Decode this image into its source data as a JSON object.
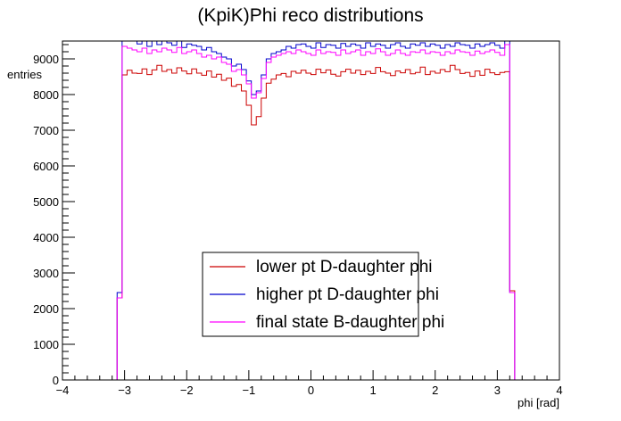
{
  "chart_data": {
    "type": "histogram",
    "title": "(KpiK)Phi reco distributions",
    "xlabel": "phi [rad]",
    "ylabel": "entries",
    "xlim": [
      -4,
      4
    ],
    "ylim": [
      0,
      9500
    ],
    "xticks": [
      -4,
      -3,
      -2,
      -1,
      0,
      1,
      2,
      3,
      4
    ],
    "yticks": [
      0,
      1000,
      2000,
      3000,
      4000,
      5000,
      6000,
      7000,
      8000,
      9000
    ],
    "x_tick_labels": [
      "−4",
      "−3",
      "−2",
      "−1",
      "0",
      "1",
      "2",
      "3",
      "4"
    ],
    "y_tick_labels": [
      "0",
      "1000",
      "2000",
      "3000",
      "4000",
      "5000",
      "6000",
      "7000",
      "8000",
      "9000"
    ],
    "grid": false,
    "legend_position": "bottom-center",
    "bins": {
      "xmin": -4,
      "xmax": 4,
      "nbins": 100
    },
    "series": [
      {
        "name": "lower pt D-daughter phi",
        "color": "#cc0000",
        "values": [
          0,
          0,
          0,
          0,
          0,
          0,
          0,
          0,
          0,
          0,
          0,
          2300,
          8550,
          8680,
          8600,
          8590,
          8720,
          8560,
          8690,
          8820,
          8650,
          8700,
          8600,
          8750,
          8660,
          8580,
          8720,
          8600,
          8540,
          8660,
          8490,
          8570,
          8400,
          8460,
          8230,
          8280,
          8100,
          7700,
          7150,
          7380,
          7900,
          8320,
          8430,
          8550,
          8590,
          8500,
          8650,
          8600,
          8680,
          8600,
          8560,
          8710,
          8610,
          8690,
          8570,
          8520,
          8640,
          8710,
          8600,
          8680,
          8560,
          8650,
          8590,
          8760,
          8640,
          8600,
          8530,
          8660,
          8610,
          8700,
          8580,
          8620,
          8770,
          8560,
          8650,
          8600,
          8700,
          8640,
          8820,
          8700,
          8590,
          8620,
          8510,
          8660,
          8540,
          8710,
          8610,
          8560,
          8620,
          8640,
          2500,
          0,
          0,
          0,
          0,
          0,
          0,
          0,
          0,
          0
        ]
      },
      {
        "name": "higher pt D-daughter phi",
        "color": "#0000cc",
        "values": [
          0,
          0,
          0,
          0,
          0,
          0,
          0,
          0,
          0,
          0,
          0,
          2450,
          9500,
          9500,
          9500,
          9420,
          9500,
          9350,
          9500,
          9400,
          9500,
          9450,
          9380,
          9500,
          9320,
          9420,
          9380,
          9350,
          9250,
          9320,
          9200,
          9150,
          9050,
          9000,
          8800,
          8850,
          8700,
          8380,
          8000,
          8100,
          8550,
          9000,
          9150,
          9200,
          9250,
          9350,
          9300,
          9400,
          9420,
          9350,
          9300,
          9450,
          9320,
          9400,
          9380,
          9300,
          9430,
          9350,
          9420,
          9380,
          9300,
          9450,
          9350,
          9420,
          9380,
          9300,
          9400,
          9450,
          9350,
          9300,
          9420,
          9380,
          9450,
          9350,
          9420,
          9380,
          9300,
          9400,
          9350,
          9450,
          9400,
          9380,
          9300,
          9420,
          9350,
          9400,
          9450,
          9380,
          9300,
          9500,
          2450,
          0,
          0,
          0,
          0,
          0,
          0,
          0,
          0,
          0
        ]
      },
      {
        "name": "final state B-daughter phi",
        "color": "#ff00ff",
        "values": [
          0,
          0,
          0,
          0,
          0,
          0,
          0,
          0,
          0,
          0,
          0,
          2300,
          9350,
          9300,
          9250,
          9200,
          9300,
          9150,
          9250,
          9200,
          9300,
          9250,
          9180,
          9320,
          9150,
          9200,
          9250,
          9150,
          9050,
          9100,
          9000,
          9050,
          8900,
          8850,
          8650,
          8700,
          8550,
          8300,
          7900,
          8050,
          8450,
          8900,
          9050,
          9100,
          9150,
          9200,
          9150,
          9250,
          9200,
          9150,
          9100,
          9250,
          9150,
          9200,
          9180,
          9100,
          9250,
          9150,
          9200,
          9250,
          9100,
          9200,
          9150,
          9280,
          9200,
          9100,
          9150,
          9250,
          9150,
          9100,
          9200,
          9180,
          9250,
          9150,
          9200,
          9180,
          9100,
          9200,
          9150,
          9250,
          9200,
          9180,
          9100,
          9220,
          9150,
          9200,
          9250,
          9180,
          9100,
          9400,
          2450,
          0,
          0,
          0,
          0,
          0,
          0,
          0,
          0,
          0
        ]
      }
    ]
  }
}
